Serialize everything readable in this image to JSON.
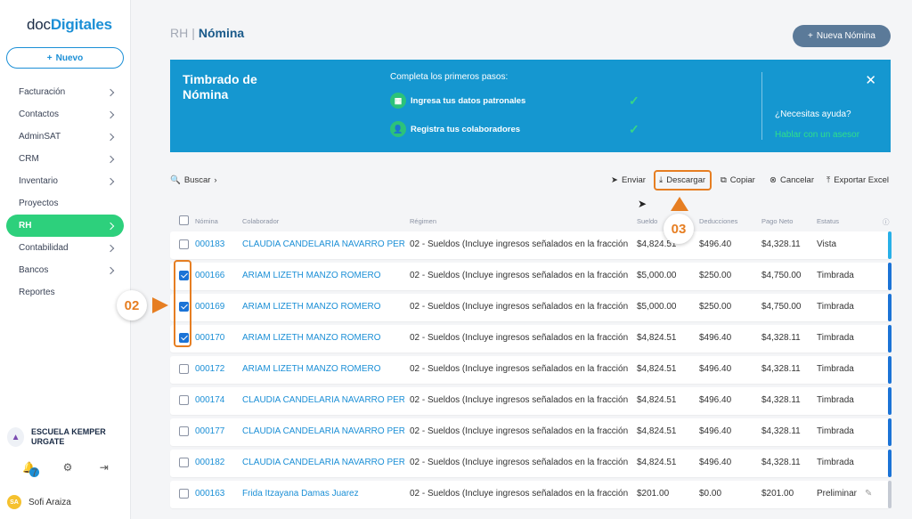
{
  "sidebar": {
    "logo_part1": "doc",
    "logo_part2": "Digitales",
    "new_button": "Nuevo",
    "items": [
      {
        "label": "Facturación",
        "chevron": true
      },
      {
        "label": "Contactos",
        "chevron": true
      },
      {
        "label": "AdminSAT",
        "chevron": true
      },
      {
        "label": "CRM",
        "chevron": true
      },
      {
        "label": "Inventario",
        "chevron": true
      },
      {
        "label": "Proyectos",
        "chevron": false
      },
      {
        "label": "RH",
        "chevron": true,
        "active": true
      },
      {
        "label": "Contabilidad",
        "chevron": true
      },
      {
        "label": "Bancos",
        "chevron": true
      },
      {
        "label": "Reportes",
        "chevron": false
      }
    ],
    "org_name": "ESCUELA KEMPER URGATE",
    "notification_count": "7",
    "user_initials": "SA",
    "user_name": "Sofi Araiza"
  },
  "header": {
    "breadcrumb_parent": "RH",
    "breadcrumb_current": "Nómina",
    "new_button": "Nueva Nómina"
  },
  "banner": {
    "title": "Timbrado de Nómina",
    "steps_title": "Completa los primeros pasos:",
    "step1": "Ingresa tus datos patronales",
    "step2": "Registra tus colaboradores",
    "help": "¿Necesitas ayuda?",
    "help_link": "Hablar con un asesor"
  },
  "toolbar": {
    "search": "Buscar",
    "enviar": "Enviar",
    "descargar": "Descargar",
    "copiar": "Copiar",
    "cancelar": "Cancelar",
    "exportar": "Exportar Excel"
  },
  "table": {
    "headers": {
      "nomina": "Nómina",
      "colaborador": "Colaborador",
      "regimen": "Régimen",
      "sueldo": "Sueldo",
      "deducciones": "Deducciones",
      "pago_neto": "Pago Neto",
      "estatus": "Estatus"
    },
    "rows": [
      {
        "nomina": "000183",
        "colaborador": "CLAUDIA CANDELARIA NAVARRO PEREZ",
        "regimen": "02 - Sueldos (Incluye ingresos señalados en la fracción",
        "sueldo": "$4,824.51",
        "deducciones": "$496.40",
        "pago_neto": "$4,328.11",
        "estatus": "Vista",
        "checked": false,
        "accent": "#28b0e8"
      },
      {
        "nomina": "000166",
        "colaborador": "ARIAM LIZETH MANZO ROMERO",
        "regimen": "02 - Sueldos (Incluye ingresos señalados en la fracción",
        "sueldo": "$5,000.00",
        "deducciones": "$250.00",
        "pago_neto": "$4,750.00",
        "estatus": "Timbrada",
        "checked": true,
        "accent": "#1b73d6"
      },
      {
        "nomina": "000169",
        "colaborador": "ARIAM LIZETH MANZO ROMERO",
        "regimen": "02 - Sueldos (Incluye ingresos señalados en la fracción",
        "sueldo": "$5,000.00",
        "deducciones": "$250.00",
        "pago_neto": "$4,750.00",
        "estatus": "Timbrada",
        "checked": true,
        "accent": "#1b73d6"
      },
      {
        "nomina": "000170",
        "colaborador": "ARIAM LIZETH MANZO ROMERO",
        "regimen": "02 - Sueldos (Incluye ingresos señalados en la fracción",
        "sueldo": "$4,824.51",
        "deducciones": "$496.40",
        "pago_neto": "$4,328.11",
        "estatus": "Timbrada",
        "checked": true,
        "accent": "#1b73d6"
      },
      {
        "nomina": "000172",
        "colaborador": "ARIAM LIZETH MANZO ROMERO",
        "regimen": "02 - Sueldos (Incluye ingresos señalados en la fracción",
        "sueldo": "$4,824.51",
        "deducciones": "$496.40",
        "pago_neto": "$4,328.11",
        "estatus": "Timbrada",
        "checked": false,
        "accent": "#1b73d6"
      },
      {
        "nomina": "000174",
        "colaborador": "CLAUDIA CANDELARIA NAVARRO PEREZ",
        "regimen": "02 - Sueldos (Incluye ingresos señalados en la fracción",
        "sueldo": "$4,824.51",
        "deducciones": "$496.40",
        "pago_neto": "$4,328.11",
        "estatus": "Timbrada",
        "checked": false,
        "accent": "#1b73d6"
      },
      {
        "nomina": "000177",
        "colaborador": "CLAUDIA CANDELARIA NAVARRO PEREZ",
        "regimen": "02 - Sueldos (Incluye ingresos señalados en la fracción",
        "sueldo": "$4,824.51",
        "deducciones": "$496.40",
        "pago_neto": "$4,328.11",
        "estatus": "Timbrada",
        "checked": false,
        "accent": "#1b73d6"
      },
      {
        "nomina": "000182",
        "colaborador": "CLAUDIA CANDELARIA NAVARRO PEREZ",
        "regimen": "02 - Sueldos (Incluye ingresos señalados en la fracción",
        "sueldo": "$4,824.51",
        "deducciones": "$496.40",
        "pago_neto": "$4,328.11",
        "estatus": "Timbrada",
        "checked": false,
        "accent": "#1b73d6"
      },
      {
        "nomina": "000163",
        "colaborador": "Frida Itzayana Damas Juarez",
        "regimen": "02 - Sueldos (Incluye ingresos señalados en la fracción",
        "sueldo": "$201.00",
        "deducciones": "$0.00",
        "pago_neto": "$201.00",
        "estatus": "Preliminar",
        "checked": false,
        "accent": "#c5cad3"
      }
    ]
  },
  "callouts": {
    "c02": "02",
    "c03": "03"
  },
  "colors": {
    "brand": "#1b8fd6",
    "active": "#2dd07c",
    "banner": "#1597d0",
    "highlight": "#e67e22"
  }
}
